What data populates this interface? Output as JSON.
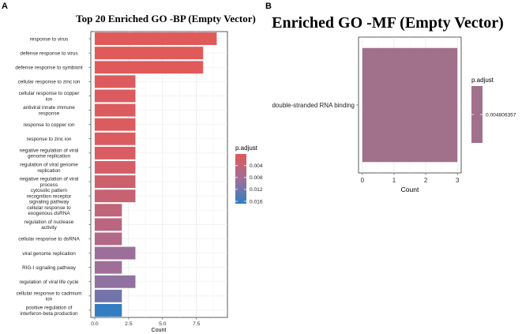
{
  "panel_a_letter": "A",
  "panel_b_letter": "B",
  "chart_data": [
    {
      "type": "bar",
      "orientation": "horizontal",
      "title": "Top 20 Enriched GO -BP (Empty Vector)",
      "xlabel": "Count",
      "ylabel": "",
      "xlim": [
        0,
        9.5
      ],
      "x_ticks": [
        "0.0",
        "2.5",
        "5.0",
        "7.5"
      ],
      "x_tick_values": [
        0,
        2.5,
        5,
        7.5
      ],
      "grid": true,
      "categories": [
        "response to virus",
        "defense response to virus",
        "defense response to symbiont",
        "cellular response to zinc ion",
        "cellular response to copper ion",
        "antiviral innate immune response",
        "response to copper ion",
        "response to zinc ion",
        "negative regulation of viral genome replication",
        "regulation of viral genome replication",
        "negative regulation of viral process",
        "cytosolic pattern recognition receptor signaling pathway",
        "cellular response to exogenous dsRNA",
        "regulation of nuclease activity",
        "cellular response to dsRNA",
        "viral genome replication",
        "RIG-I signaling pathway",
        "regulation of viral life cycle",
        "cellular response to cadmium ion",
        "positive regulation of interferon-beta production"
      ],
      "category_label_lines": [
        [
          "response to virus"
        ],
        [
          "defense response to virus"
        ],
        [
          "defense response to symbiont"
        ],
        [
          "cellular response to zinc ion"
        ],
        [
          "cellular response to copper",
          "ion"
        ],
        [
          "antiviral innate immune",
          "response"
        ],
        [
          "response to copper ion"
        ],
        [
          "response to zinc ion"
        ],
        [
          "negative regulation of viral",
          "genome replication"
        ],
        [
          "regulation of viral genome",
          "replication"
        ],
        [
          "negative regulation of viral",
          "process"
        ],
        [
          "cytosolic pattern",
          "recognition receptor",
          "signaling pathway"
        ],
        [
          "cellular response to",
          "exogenous dsRNA"
        ],
        [
          "regulation of nuclease",
          "activity"
        ],
        [
          "cellular response to dsRNA"
        ],
        [
          "viral genome replication"
        ],
        [
          "RIG-I signaling pathway"
        ],
        [
          "regulation of viral life cycle"
        ],
        [
          "cellular response to cadmium",
          "ion"
        ],
        [
          "positive regulation of",
          "interferon-beta production"
        ]
      ],
      "values": [
        9,
        8,
        8,
        3,
        3,
        3,
        3,
        3,
        3,
        3,
        3,
        3,
        2,
        2,
        2,
        3,
        2,
        3,
        2,
        2
      ],
      "p_adjust": [
        0.0001,
        0.0001,
        0.0001,
        0.0006,
        0.0007,
        0.0007,
        0.0008,
        0.0009,
        0.0011,
        0.0018,
        0.0026,
        0.0034,
        0.0043,
        0.0052,
        0.0062,
        0.0088,
        0.0085,
        0.0097,
        0.0118,
        0.0165
      ],
      "legend": {
        "title": "p.adjust",
        "ticks": [
          "0.004",
          "0.008",
          "0.012",
          "0.016"
        ],
        "tick_values": [
          0.004,
          0.008,
          0.012,
          0.016
        ],
        "range": [
          0.0001,
          0.0168
        ],
        "placement": "right",
        "color_low": "#e05a5a",
        "color_mid": "#a16e98",
        "color_high": "#2f7fc4"
      }
    },
    {
      "type": "bar",
      "orientation": "horizontal",
      "title": "Enriched GO -MF (Empty Vector)",
      "xlabel": "Count",
      "ylabel": "",
      "xlim": [
        -0.12,
        3.12
      ],
      "x_ticks": [
        "0",
        "1",
        "2",
        "3"
      ],
      "x_tick_values": [
        0,
        1,
        2,
        3
      ],
      "grid": true,
      "categories": [
        "double-stranded RNA binding"
      ],
      "values": [
        3
      ],
      "p_adjust": [
        0.004806357
      ],
      "legend": {
        "title": "p.adjust",
        "ticks": [
          "0.004806357"
        ],
        "placement": "right",
        "color": "#a1708a"
      }
    }
  ]
}
